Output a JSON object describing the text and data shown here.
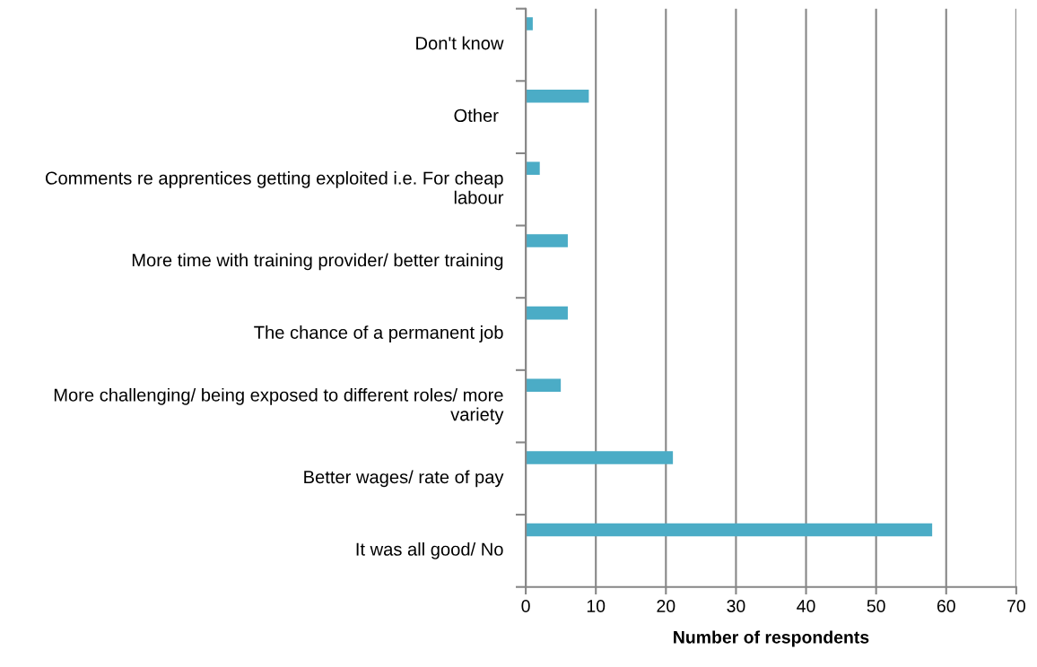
{
  "chart_data": {
    "type": "bar",
    "orientation": "horizontal",
    "categories": [
      "Don't know",
      "Other ",
      "Comments re apprentices getting exploited i.e. For cheap labour",
      "More time with training provider/ better training",
      "The chance of a permanent job",
      "More challenging/ being exposed to different roles/ more variety",
      "Better wages/ rate of pay",
      "It was all good/ No"
    ],
    "values": [
      1,
      9,
      2,
      6,
      6,
      5,
      21,
      58
    ],
    "color": "#4bacc6",
    "xlim": [
      0,
      70
    ],
    "xticks": [
      0,
      10,
      20,
      30,
      40,
      50,
      60,
      70
    ],
    "xlabel": "Number of respondents",
    "grid": "x"
  }
}
